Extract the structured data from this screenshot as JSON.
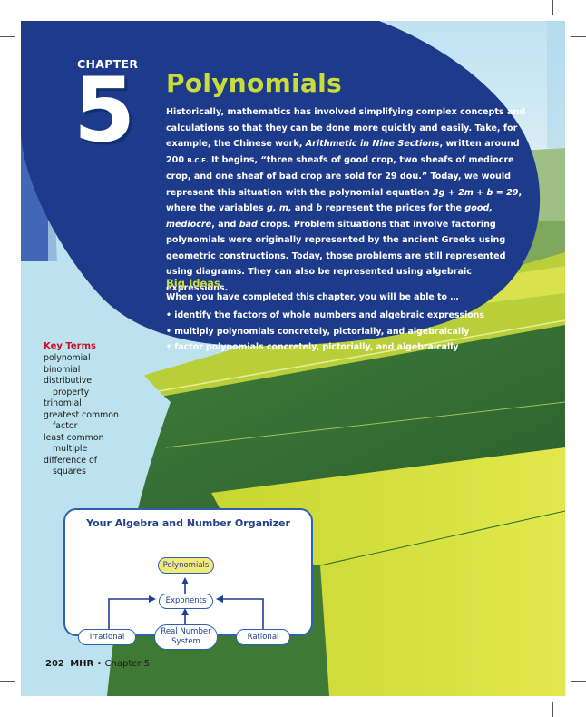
{
  "chapter": {
    "label": "CHAPTER",
    "number": "5",
    "title": "Polynomials"
  },
  "intro": {
    "p1": "Historically, mathematics has involved simplifying complex concepts and calculations so that they can be done more quickly and easily. Take, for example, the Chinese work, ",
    "work_title": "Arithmetic in Nine Sections",
    "p2": ", written around 200 ",
    "era": "B.C.E.",
    "p3": " It begins, “three sheafs of good crop, two sheafs of mediocre crop, and one sheaf of bad crop are sold for 29 dou.” Today, we would represent this situation with the polynomial equation ",
    "equation": "3g + 2m + b = 29",
    "p4": ", where the variables ",
    "variables": "g, m,",
    "p5": " and ",
    "var_b": "b",
    "p6": " represent the prices for the ",
    "good_mediocre": "good, mediocre",
    "p7": ", and ",
    "bad": "bad",
    "p8": " crops. Problem situations that involve factoring polynomials were originally represented by the ancient Greeks using geometric constructions. Today, those problems are still represented using diagrams. They can also be represented using algebraic expressions."
  },
  "big_ideas": {
    "heading": "Big Ideas",
    "intro": "When you have completed this chapter, you will be able to …",
    "items": [
      "• identify the factors of whole numbers and algebraic expressions",
      "• multiply polynomials concretely, pictorially, and algebraically",
      "• factor polynomials concretely, pictorially, and algebraically"
    ]
  },
  "key_terms": {
    "heading": "Key Terms",
    "lines": [
      {
        "text": "polynomial",
        "indent": false
      },
      {
        "text": "binomial",
        "indent": false
      },
      {
        "text": "distributive",
        "indent": false
      },
      {
        "text": "property",
        "indent": true
      },
      {
        "text": "trinomial",
        "indent": false
      },
      {
        "text": "greatest common",
        "indent": false
      },
      {
        "text": "factor",
        "indent": true
      },
      {
        "text": "least common",
        "indent": false
      },
      {
        "text": "multiple",
        "indent": true
      },
      {
        "text": "difference of",
        "indent": false
      },
      {
        "text": "squares",
        "indent": true
      }
    ]
  },
  "organizer": {
    "title": "Your Algebra and Number Organizer",
    "nodes": {
      "polynomials": "Polynomials",
      "exponents": "Exponents",
      "real_line1": "Real Number",
      "real_line2": "System",
      "irrational": "Irrational",
      "rational": "Rational"
    }
  },
  "footer": {
    "page_number": "202",
    "publisher": "MHR",
    "bullet": "•",
    "chapter_ref": "Chapter 5"
  },
  "colors": {
    "navy": "#1e3a8a",
    "title_green": "#c9dc3a",
    "key_terms_red": "#c8102e",
    "organizer_blue": "#2e62b0",
    "polynomials_fill": "#f3ea7a"
  }
}
